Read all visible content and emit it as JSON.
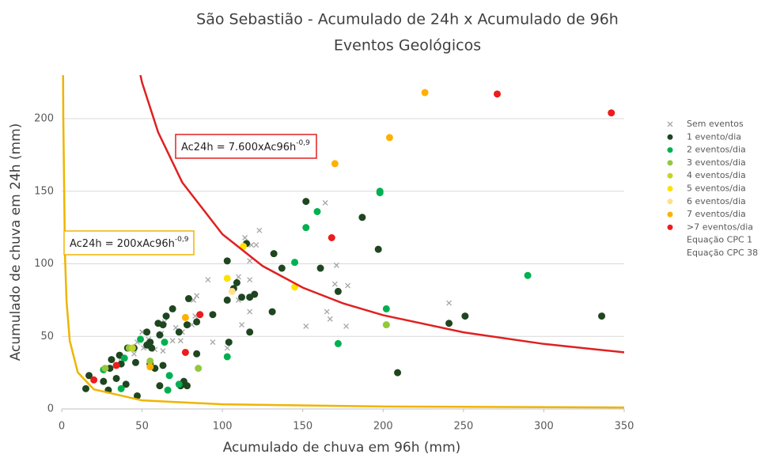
{
  "chart_data": {
    "type": "scatter",
    "title": "São Sebastião - Acumulado de 24h x Acumulado de 96h",
    "subtitle": "Eventos Geológicos",
    "x_label": "Acumulado de chuva em 96h (mm)",
    "y_label": "Acumulado de chuva em 24h (mm)",
    "xlim": [
      0,
      350
    ],
    "xticks": [
      0,
      50,
      100,
      150,
      200,
      250,
      300,
      350
    ],
    "ylim": [
      0,
      230
    ],
    "yticks": [
      0,
      50,
      100,
      150,
      200
    ],
    "grid": true,
    "legend": "right",
    "annotations": [
      {
        "text": "Ac24h = 7.600xAc96h",
        "superscript": "-0,9",
        "color": "#e02020"
      },
      {
        "text": "Ac24h = 200xAc96h",
        "superscript": "-0,9",
        "color": "#f0b400"
      }
    ],
    "series": [
      {
        "name": "Sem eventos",
        "type": "scatter",
        "marker": "x",
        "color": "#a6a6a6",
        "x": [
          123,
          164,
          114,
          118,
          121,
          117,
          117,
          91,
          110,
          110,
          117,
          112,
          103,
          94,
          84,
          82,
          83,
          81,
          75,
          71,
          74,
          69,
          64,
          62,
          58,
          63,
          51,
          47,
          50,
          54,
          171,
          170,
          178,
          167,
          152,
          177,
          241,
          165,
          37,
          45
        ],
        "values": [
          123,
          142,
          118,
          113,
          113,
          102,
          89,
          89,
          91,
          75,
          67,
          58,
          42,
          46,
          78,
          75,
          64,
          58,
          53,
          56,
          47,
          47,
          60,
          52,
          41,
          40,
          42,
          46,
          53,
          48,
          99,
          86,
          85,
          62,
          57,
          57,
          73,
          67,
          35,
          38
        ]
      },
      {
        "name": "1 evento/dia",
        "type": "scatter",
        "color": "#1e4620",
        "x": [
          152,
          187,
          197,
          132,
          137,
          161,
          115,
          117,
          120,
          112,
          109,
          107,
          103,
          103,
          117,
          131,
          172,
          104,
          94,
          84,
          79,
          84,
          78,
          73,
          69,
          65,
          63,
          60,
          61,
          55,
          53,
          56,
          53,
          45,
          41,
          36,
          31,
          37,
          46,
          55,
          58,
          63,
          34,
          29,
          17,
          15,
          26,
          40,
          47,
          61,
          74,
          76,
          78,
          241,
          251,
          336,
          209,
          30
        ],
        "values": [
          143,
          132,
          110,
          107,
          97,
          97,
          114,
          77,
          79,
          77,
          87,
          83,
          102,
          75,
          53,
          67,
          81,
          46,
          65,
          60,
          76,
          38,
          58,
          53,
          69,
          64,
          58,
          59,
          51,
          46,
          44,
          42,
          53,
          42,
          42,
          37,
          34,
          31,
          32,
          31,
          28,
          30,
          21,
          13,
          23,
          14,
          19,
          17,
          9,
          16,
          16,
          19,
          16,
          59,
          64,
          64,
          25,
          28
        ]
      },
      {
        "name": "2 eventos/dia",
        "type": "scatter",
        "color": "#00b050",
        "x": [
          152,
          159,
          198,
          198,
          145,
          202,
          172,
          103,
          66,
          67,
          73,
          64,
          49,
          39,
          26,
          37,
          290
        ],
        "values": [
          125,
          136,
          150,
          149,
          101,
          69,
          45,
          36,
          13,
          23,
          17,
          46,
          48,
          35,
          27,
          14,
          92
        ]
      },
      {
        "name": "3 eventos/dia",
        "type": "scatter",
        "color": "#92c83e",
        "x": [
          202,
          85,
          55,
          42,
          27
        ],
        "values": [
          58,
          28,
          33,
          42,
          28
        ]
      },
      {
        "name": "4 eventos/dia",
        "type": "scatter",
        "color": "#c4d42a",
        "x": [
          44
        ],
        "values": [
          42
        ]
      },
      {
        "name": "5 eventos/dia",
        "type": "scatter",
        "color": "#ffe000",
        "x": [
          103,
          113,
          145
        ],
        "values": [
          90,
          112,
          84
        ]
      },
      {
        "name": "6 eventos/dia",
        "type": "scatter",
        "color": "#ffe08a",
        "x": [
          106
        ],
        "values": [
          81
        ]
      },
      {
        "name": "7 eventos/dia",
        "type": "scatter",
        "color": "#ffb000",
        "x": [
          226,
          204,
          170,
          77,
          55
        ],
        "values": [
          218,
          187,
          169,
          63,
          29
        ]
      },
      {
        "name": ">7 eventos/dia",
        "type": "scatter",
        "color": "#ee1c1c",
        "x": [
          271,
          342,
          168,
          86,
          77,
          34,
          20
        ],
        "values": [
          217,
          204,
          118,
          65,
          39,
          30,
          20
        ]
      },
      {
        "name": "Equação CPC 1",
        "type": "line",
        "color": "#e02020",
        "x": [
          49,
          50,
          60,
          75,
          100,
          125,
          150,
          175,
          200,
          250,
          300,
          350
        ],
        "values": [
          230,
          224.9,
          190.7,
          156.1,
          120.4,
          98.5,
          83.6,
          72.8,
          64.6,
          52.8,
          44.8,
          39.0
        ]
      },
      {
        "name": "Equação CPC 38",
        "type": "line",
        "color": "#f0b400",
        "x": [
          0.86,
          0.9,
          1,
          2,
          3,
          5,
          10,
          20,
          50,
          100,
          200,
          350
        ],
        "values": [
          230,
          219.9,
          200,
          107.2,
          74.4,
          47.0,
          25.2,
          13.5,
          5.9,
          3.2,
          1.7,
          1.0
        ]
      }
    ]
  }
}
